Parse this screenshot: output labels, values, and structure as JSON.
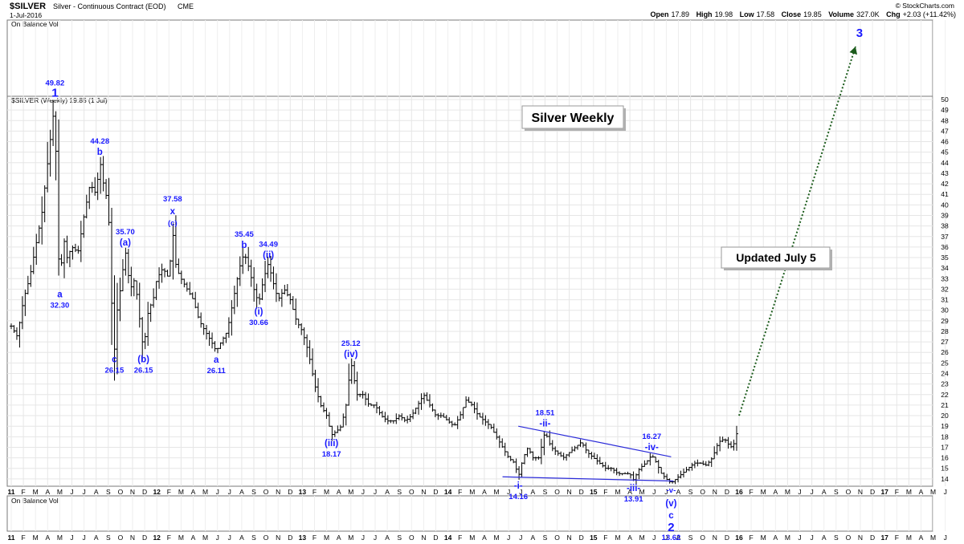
{
  "header": {
    "symbol": "$SILVER",
    "name": "Silver - Continuous Contract (EOD)",
    "exchange": "CME",
    "date": "1-Jul-2016",
    "brand": "© StockCharts.com",
    "open_label": "Open",
    "open": "17.89",
    "high_label": "High",
    "high": "19.98",
    "low_label": "Low",
    "low": "17.58",
    "close_label": "Close",
    "close": "19.85",
    "volume_label": "Volume",
    "volume": "327.0K",
    "chg_label": "Chg",
    "chg": "+2.03 (+11.42%)"
  },
  "panels": {
    "obv_top": "On Balance Vol",
    "obv_bottom": "On Balance Vol",
    "price_label": "$SILVER (Weekly) 19.85 (1 Jul)"
  },
  "boxes": {
    "title": "Silver Weekly",
    "updated": "Updated July 5"
  },
  "chart_data": {
    "type": "candlestick-ohlc",
    "title": "Silver Weekly",
    "series_name": "$SILVER (Weekly)",
    "ylim": [
      13,
      50
    ],
    "y_ticks": [
      14,
      15,
      16,
      17,
      18,
      19,
      20,
      21,
      22,
      23,
      24,
      25,
      26,
      27,
      28,
      29,
      30,
      31,
      32,
      33,
      34,
      35,
      36,
      37,
      38,
      39,
      40,
      41,
      42,
      43,
      44,
      45,
      46,
      47,
      48,
      49,
      50
    ],
    "x_ticks": [
      "11",
      "F",
      "M",
      "A",
      "M",
      "J",
      "J",
      "A",
      "S",
      "O",
      "N",
      "D",
      "12",
      "F",
      "M",
      "A",
      "M",
      "J",
      "J",
      "A",
      "S",
      "O",
      "N",
      "D",
      "13",
      "F",
      "M",
      "A",
      "M",
      "J",
      "J",
      "A",
      "S",
      "O",
      "N",
      "D",
      "14",
      "F",
      "M",
      "A",
      "M",
      "J",
      "J",
      "A",
      "S",
      "O",
      "N",
      "D",
      "15",
      "F",
      "M",
      "A",
      "M",
      "J",
      "J",
      "A",
      "S",
      "O",
      "N",
      "D",
      "16",
      "F",
      "M",
      "A",
      "M",
      "J",
      "J",
      "A",
      "S",
      "O",
      "N",
      "D",
      "17",
      "F",
      "M",
      "A",
      "M",
      "J"
    ],
    "x_bold": [
      "11",
      "12",
      "13",
      "14",
      "15",
      "16",
      "17"
    ],
    "price_path": [
      [
        0,
        28.5
      ],
      [
        0.5,
        27.5
      ],
      [
        1,
        31
      ],
      [
        1.5,
        33
      ],
      [
        2,
        36
      ],
      [
        2.5,
        39
      ],
      [
        3,
        44
      ],
      [
        3.3,
        47
      ],
      [
        3.6,
        49.82
      ],
      [
        3.8,
        38
      ],
      [
        4,
        32.3
      ],
      [
        4.3,
        37
      ],
      [
        4.6,
        35
      ],
      [
        5,
        36
      ],
      [
        5.5,
        35.5
      ],
      [
        6,
        39
      ],
      [
        6.5,
        42
      ],
      [
        7,
        41
      ],
      [
        7.3,
        44.28
      ],
      [
        7.6,
        42
      ],
      [
        8,
        40
      ],
      [
        8.3,
        30
      ],
      [
        8.5,
        26.15
      ],
      [
        8.8,
        31
      ],
      [
        9,
        32
      ],
      [
        9.4,
        35.7
      ],
      [
        9.8,
        32
      ],
      [
        10.2,
        33
      ],
      [
        10.6,
        29
      ],
      [
        10.9,
        26.15
      ],
      [
        11.3,
        30
      ],
      [
        11.7,
        31
      ],
      [
        12,
        33
      ],
      [
        12.5,
        34
      ],
      [
        13,
        33
      ],
      [
        13.3,
        37.58
      ],
      [
        13.6,
        34
      ],
      [
        14,
        33
      ],
      [
        14.5,
        32
      ],
      [
        15,
        31
      ],
      [
        15.5,
        29
      ],
      [
        16,
        28
      ],
      [
        16.5,
        27
      ],
      [
        16.9,
        26.11
      ],
      [
        17.3,
        27
      ],
      [
        17.8,
        28
      ],
      [
        18.3,
        31
      ],
      [
        18.8,
        34
      ],
      [
        19.2,
        35.45
      ],
      [
        19.6,
        34
      ],
      [
        20,
        32
      ],
      [
        20.4,
        30.66
      ],
      [
        20.8,
        33
      ],
      [
        21.2,
        34.49
      ],
      [
        21.5,
        33
      ],
      [
        22,
        31
      ],
      [
        22.5,
        32
      ],
      [
        23,
        31
      ],
      [
        23.5,
        29
      ],
      [
        24,
        28
      ],
      [
        24.5,
        26
      ],
      [
        25,
        23
      ],
      [
        25.5,
        21
      ],
      [
        26,
        20
      ],
      [
        26.4,
        18.17
      ],
      [
        26.8,
        18.5
      ],
      [
        27.2,
        19
      ],
      [
        27.6,
        21
      ],
      [
        28,
        25.12
      ],
      [
        28.5,
        22
      ],
      [
        29,
        22
      ],
      [
        29.5,
        21
      ],
      [
        30,
        21
      ],
      [
        30.5,
        20
      ],
      [
        31,
        19.5
      ],
      [
        31.5,
        19.5
      ],
      [
        32,
        20
      ],
      [
        32.5,
        19.5
      ],
      [
        33,
        20
      ],
      [
        33.5,
        21
      ],
      [
        34,
        22
      ],
      [
        34.5,
        21
      ],
      [
        35,
        20
      ],
      [
        35.5,
        20
      ],
      [
        36,
        19.5
      ],
      [
        36.5,
        19
      ],
      [
        37,
        20
      ],
      [
        37.5,
        21.5
      ],
      [
        38,
        21
      ],
      [
        38.5,
        20
      ],
      [
        39,
        19.5
      ],
      [
        39.5,
        19
      ],
      [
        40,
        18
      ],
      [
        40.5,
        17
      ],
      [
        41,
        16
      ],
      [
        41.5,
        15.5
      ],
      [
        41.8,
        14.16
      ],
      [
        42.2,
        16
      ],
      [
        42.6,
        17
      ],
      [
        43,
        16
      ],
      [
        43.5,
        16
      ],
      [
        44,
        18.51
      ],
      [
        44.5,
        17
      ],
      [
        45,
        16.5
      ],
      [
        45.5,
        16
      ],
      [
        46,
        16.5
      ],
      [
        46.5,
        17
      ],
      [
        47,
        17.5
      ],
      [
        47.5,
        16.5
      ],
      [
        48,
        16
      ],
      [
        48.5,
        15.5
      ],
      [
        49,
        15
      ],
      [
        49.5,
        15
      ],
      [
        50,
        14.5
      ],
      [
        50.5,
        14.5
      ],
      [
        51,
        14.5
      ],
      [
        51.3,
        13.91
      ],
      [
        51.8,
        15
      ],
      [
        52.3,
        15.5
      ],
      [
        52.8,
        16.27
      ],
      [
        53.2,
        15.5
      ],
      [
        53.6,
        14.5
      ],
      [
        54,
        14
      ],
      [
        54.4,
        13.62
      ],
      [
        54.8,
        14
      ],
      [
        55.3,
        14.5
      ],
      [
        55.8,
        15
      ],
      [
        56.3,
        15.5
      ],
      [
        56.8,
        15.5
      ],
      [
        57.3,
        15.3
      ],
      [
        57.8,
        16
      ],
      [
        58.3,
        17.5
      ],
      [
        58.8,
        17.8
      ],
      [
        59.3,
        17
      ],
      [
        59.7,
        17.5
      ],
      [
        60,
        19.85
      ]
    ],
    "annotations": [
      {
        "x": 3.6,
        "y": 49.82,
        "value": "49.82",
        "wave": "1",
        "pos": "above",
        "big": true
      },
      {
        "x": 4.0,
        "y": 32.3,
        "value": "32.30",
        "wave": "a",
        "pos": "below"
      },
      {
        "x": 7.3,
        "y": 44.28,
        "value": "44.28",
        "wave": "b",
        "pos": "above"
      },
      {
        "x": 8.5,
        "y": 26.15,
        "value": "26.15",
        "wave": "c",
        "pos": "below"
      },
      {
        "x": 9.4,
        "y": 35.7,
        "value": "35.70",
        "wave": "(a)",
        "pos": "above"
      },
      {
        "x": 10.9,
        "y": 26.15,
        "value": "26.15",
        "wave": "(b)",
        "pos": "below"
      },
      {
        "x": 13.3,
        "y": 37.58,
        "value": "37.58",
        "wave": "x",
        "wave2": "(c)",
        "pos": "above"
      },
      {
        "x": 16.9,
        "y": 26.11,
        "value": "26.11",
        "wave": "a",
        "pos": "below"
      },
      {
        "x": 19.2,
        "y": 35.45,
        "value": "35.45",
        "wave": "b",
        "pos": "above"
      },
      {
        "x": 20.4,
        "y": 30.66,
        "value": "30.66",
        "wave": "(i)",
        "pos": "below"
      },
      {
        "x": 21.2,
        "y": 34.49,
        "value": "34.49",
        "wave": "(ii)",
        "pos": "above"
      },
      {
        "x": 26.4,
        "y": 18.17,
        "value": "18.17",
        "wave": "(iii)",
        "pos": "below"
      },
      {
        "x": 28.0,
        "y": 25.12,
        "value": "25.12",
        "wave": "(iv)",
        "pos": "above"
      },
      {
        "x": 41.8,
        "y": 14.16,
        "value": "14.16",
        "wave": "-i-",
        "pos": "below"
      },
      {
        "x": 44.0,
        "y": 18.51,
        "value": "18.51",
        "wave": "-ii-",
        "pos": "above"
      },
      {
        "x": 51.3,
        "y": 13.91,
        "value": "13.91",
        "wave": "-iii-",
        "pos": "below"
      },
      {
        "x": 52.8,
        "y": 16.27,
        "value": "16.27",
        "wave": "-iv-",
        "pos": "above"
      }
    ],
    "final_low": {
      "x": 54.4,
      "y": 13.62,
      "value": "13.62",
      "waves": [
        "-v-",
        "(v)",
        "c",
        "2"
      ]
    },
    "projection": {
      "from": [
        60,
        20
      ],
      "to": [
        69.6,
        "top"
      ],
      "label": "3"
    },
    "trendlines": [
      {
        "from": [
          41.8,
          19.0
        ],
        "to": [
          54.4,
          16.1
        ]
      },
      {
        "from": [
          40.5,
          14.2
        ],
        "to": [
          54.6,
          13.8
        ]
      }
    ],
    "grid": true
  }
}
